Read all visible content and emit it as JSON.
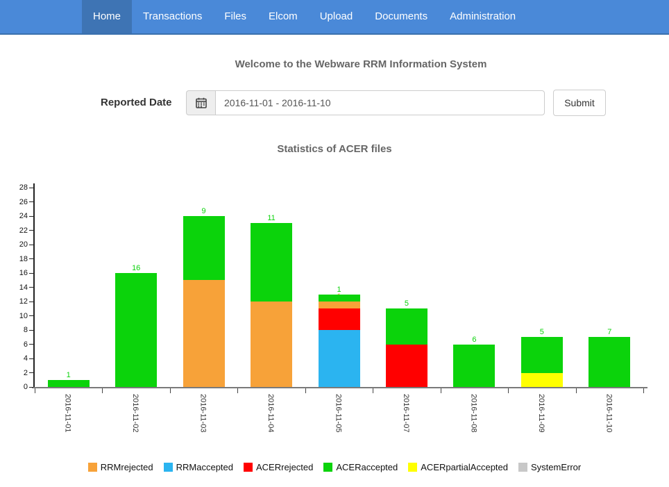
{
  "nav": {
    "items": [
      {
        "label": "Home",
        "active": true
      },
      {
        "label": "Transactions",
        "active": false
      },
      {
        "label": "Files",
        "active": false
      },
      {
        "label": "Elcom",
        "active": false
      },
      {
        "label": "Upload",
        "active": false
      },
      {
        "label": "Documents",
        "active": false
      },
      {
        "label": "Administration",
        "active": false
      }
    ]
  },
  "welcome_title": "Welcome to the Webware RRM Information System",
  "form": {
    "label": "Reported Date",
    "date_range_value": "2016-11-01 - 2016-11-10",
    "submit_label": "Submit",
    "calendar_icon": "calendar-icon"
  },
  "chart_data": {
    "type": "bar",
    "stacked": true,
    "title": "Statistics of ACER files",
    "categories": [
      "2016-11-01",
      "2016-11-02",
      "2016-11-03",
      "2016-11-04",
      "2016-11-05",
      "2016-11-07",
      "2016-11-08",
      "2016-11-09",
      "2016-11-10"
    ],
    "series": [
      {
        "name": "RRMrejected",
        "color": "#F7A239",
        "values": [
          0,
          0,
          15,
          12,
          1,
          0,
          0,
          0,
          0
        ]
      },
      {
        "name": "RRMaccepted",
        "color": "#2BB4F0",
        "values": [
          0,
          0,
          0,
          0,
          8,
          0,
          0,
          0,
          0
        ]
      },
      {
        "name": "ACERrejected",
        "color": "#FF0000",
        "values": [
          0,
          0,
          0,
          0,
          3,
          6,
          0,
          0,
          0
        ]
      },
      {
        "name": "ACERaccepted",
        "color": "#0BD30B",
        "values": [
          1,
          16,
          9,
          11,
          1,
          5,
          6,
          5,
          7
        ]
      },
      {
        "name": "ACERpartialAccepted",
        "color": "#FFFF00",
        "values": [
          0,
          0,
          0,
          0,
          0,
          0,
          0,
          2,
          0
        ]
      },
      {
        "name": "SystemError",
        "color": "#C8C8C8",
        "values": [
          0,
          0,
          0,
          0,
          0,
          0,
          0,
          0,
          0
        ]
      }
    ],
    "stack_order_bottom_to_top": [
      "RRMaccepted",
      "ACERrejected",
      "RRMrejected",
      "ACERpartialAccepted",
      "ACERaccepted",
      "SystemError"
    ],
    "bar_totals": [
      1,
      16,
      24,
      23,
      13,
      11,
      6,
      7,
      7
    ],
    "ylim": [
      0,
      28
    ],
    "y_tick_step": 2,
    "grid": false,
    "legend_position": "bottom",
    "value_labels": "per-segment, colored as segment, placed at top edge of segment"
  }
}
